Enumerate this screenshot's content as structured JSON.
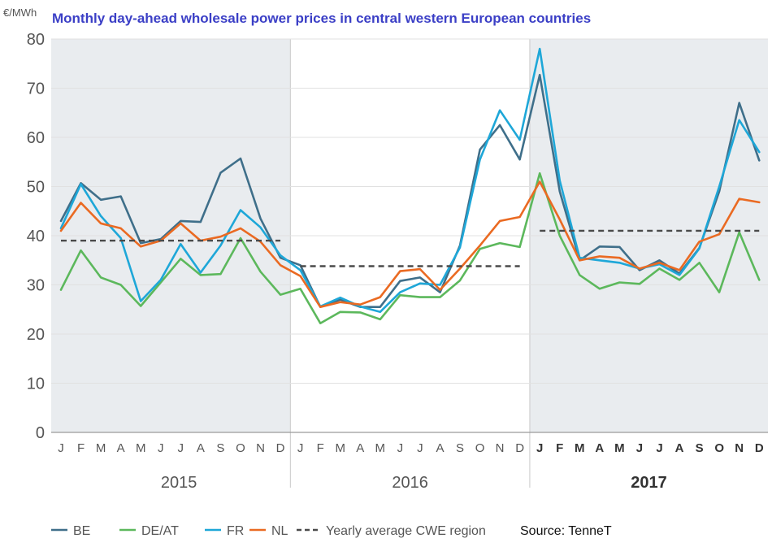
{
  "chart_data": {
    "type": "line",
    "title": "Monthly day-ahead wholesale power prices in central western European countries",
    "ylabel": "€/MWh",
    "ylim": [
      0,
      80
    ],
    "yticks": [
      0,
      10,
      20,
      30,
      40,
      50,
      60,
      70,
      80
    ],
    "grid": true,
    "legend_position": "bottom-left",
    "source": "Source: TenneT",
    "years": [
      {
        "label": "2015",
        "bold": false,
        "shaded": true
      },
      {
        "label": "2016",
        "bold": false,
        "shaded": false
      },
      {
        "label": "2017",
        "bold": true,
        "shaded": true
      }
    ],
    "months": [
      "J",
      "F",
      "M",
      "A",
      "M",
      "J",
      "J",
      "A",
      "S",
      "O",
      "N",
      "D"
    ],
    "categories": [
      "Jan 2015",
      "Feb 2015",
      "Mar 2015",
      "Apr 2015",
      "May 2015",
      "Jun 2015",
      "Jul 2015",
      "Aug 2015",
      "Sep 2015",
      "Oct 2015",
      "Nov 2015",
      "Dec 2015",
      "Jan 2016",
      "Feb 2016",
      "Mar 2016",
      "Apr 2016",
      "May 2016",
      "Jun 2016",
      "Jul 2016",
      "Aug 2016",
      "Sep 2016",
      "Oct 2016",
      "Nov 2016",
      "Dec 2016",
      "Jan 2017",
      "Feb 2017",
      "Mar 2017",
      "Apr 2017",
      "May 2017",
      "Jun 2017",
      "Jul 2017",
      "Aug 2017",
      "Sep 2017",
      "Oct 2017",
      "Nov 2017",
      "Dec 2017"
    ],
    "series": [
      {
        "name": "BE",
        "color": "#3f6f8a",
        "style": "solid",
        "values": [
          43,
          50.7,
          47.3,
          48,
          38.5,
          39.3,
          43,
          42.8,
          52.8,
          55.7,
          43.5,
          35.5,
          34,
          25.5,
          27,
          25.5,
          25.5,
          30.8,
          31.5,
          28.5,
          38,
          57.5,
          62.5,
          55.5,
          72.7,
          49,
          35,
          37.8,
          37.7,
          33,
          35,
          32.3,
          37.5,
          49,
          67,
          55.3
        ]
      },
      {
        "name": "DE/AT",
        "color": "#5cb85c",
        "style": "solid",
        "values": [
          29,
          37,
          31.5,
          30,
          25.7,
          30.5,
          35.3,
          32,
          32.2,
          39.5,
          32.7,
          28,
          29.2,
          22.2,
          24.5,
          24.4,
          23,
          27.9,
          27.5,
          27.5,
          30.9,
          37.3,
          38.5,
          37.7,
          52.7,
          40,
          32,
          29.2,
          30.5,
          30.2,
          33.3,
          31,
          34.5,
          28.5,
          40.7,
          31
        ]
      },
      {
        "name": "FR",
        "color": "#1ea7d8",
        "style": "solid",
        "values": [
          41.5,
          50.5,
          44,
          39.5,
          26.7,
          31,
          38.3,
          32.5,
          38,
          45.2,
          41.7,
          36,
          33,
          25.6,
          27.4,
          25.6,
          24.5,
          28.5,
          30.3,
          30,
          37.6,
          55.5,
          65.5,
          59.5,
          78,
          51.2,
          35.5,
          35,
          34.5,
          33.3,
          34.2,
          32,
          37.4,
          50,
          63.5,
          57
        ]
      },
      {
        "name": "NL",
        "color": "#ea6a22",
        "style": "solid",
        "values": [
          41,
          46.7,
          42.5,
          41.5,
          37.8,
          39,
          42.5,
          39,
          39.8,
          41.5,
          38.8,
          34,
          31.8,
          25.5,
          26.5,
          26,
          27.5,
          32.8,
          33.2,
          29,
          33.3,
          38,
          43,
          43.8,
          51,
          43.3,
          35,
          35.8,
          35.5,
          33.3,
          34.5,
          33,
          38.8,
          40.3,
          47.5,
          46.8
        ]
      },
      {
        "name": "Yearly average CWE region",
        "color": "#4a4a4a",
        "style": "dashed",
        "segments": [
          {
            "from": "Jan 2015",
            "to": "Dec 2015",
            "value": 39
          },
          {
            "from": "Jan 2016",
            "to": "Dec 2016",
            "value": 33.8
          },
          {
            "from": "Jan 2017",
            "to": "Dec 2017",
            "value": 41
          }
        ]
      }
    ]
  }
}
